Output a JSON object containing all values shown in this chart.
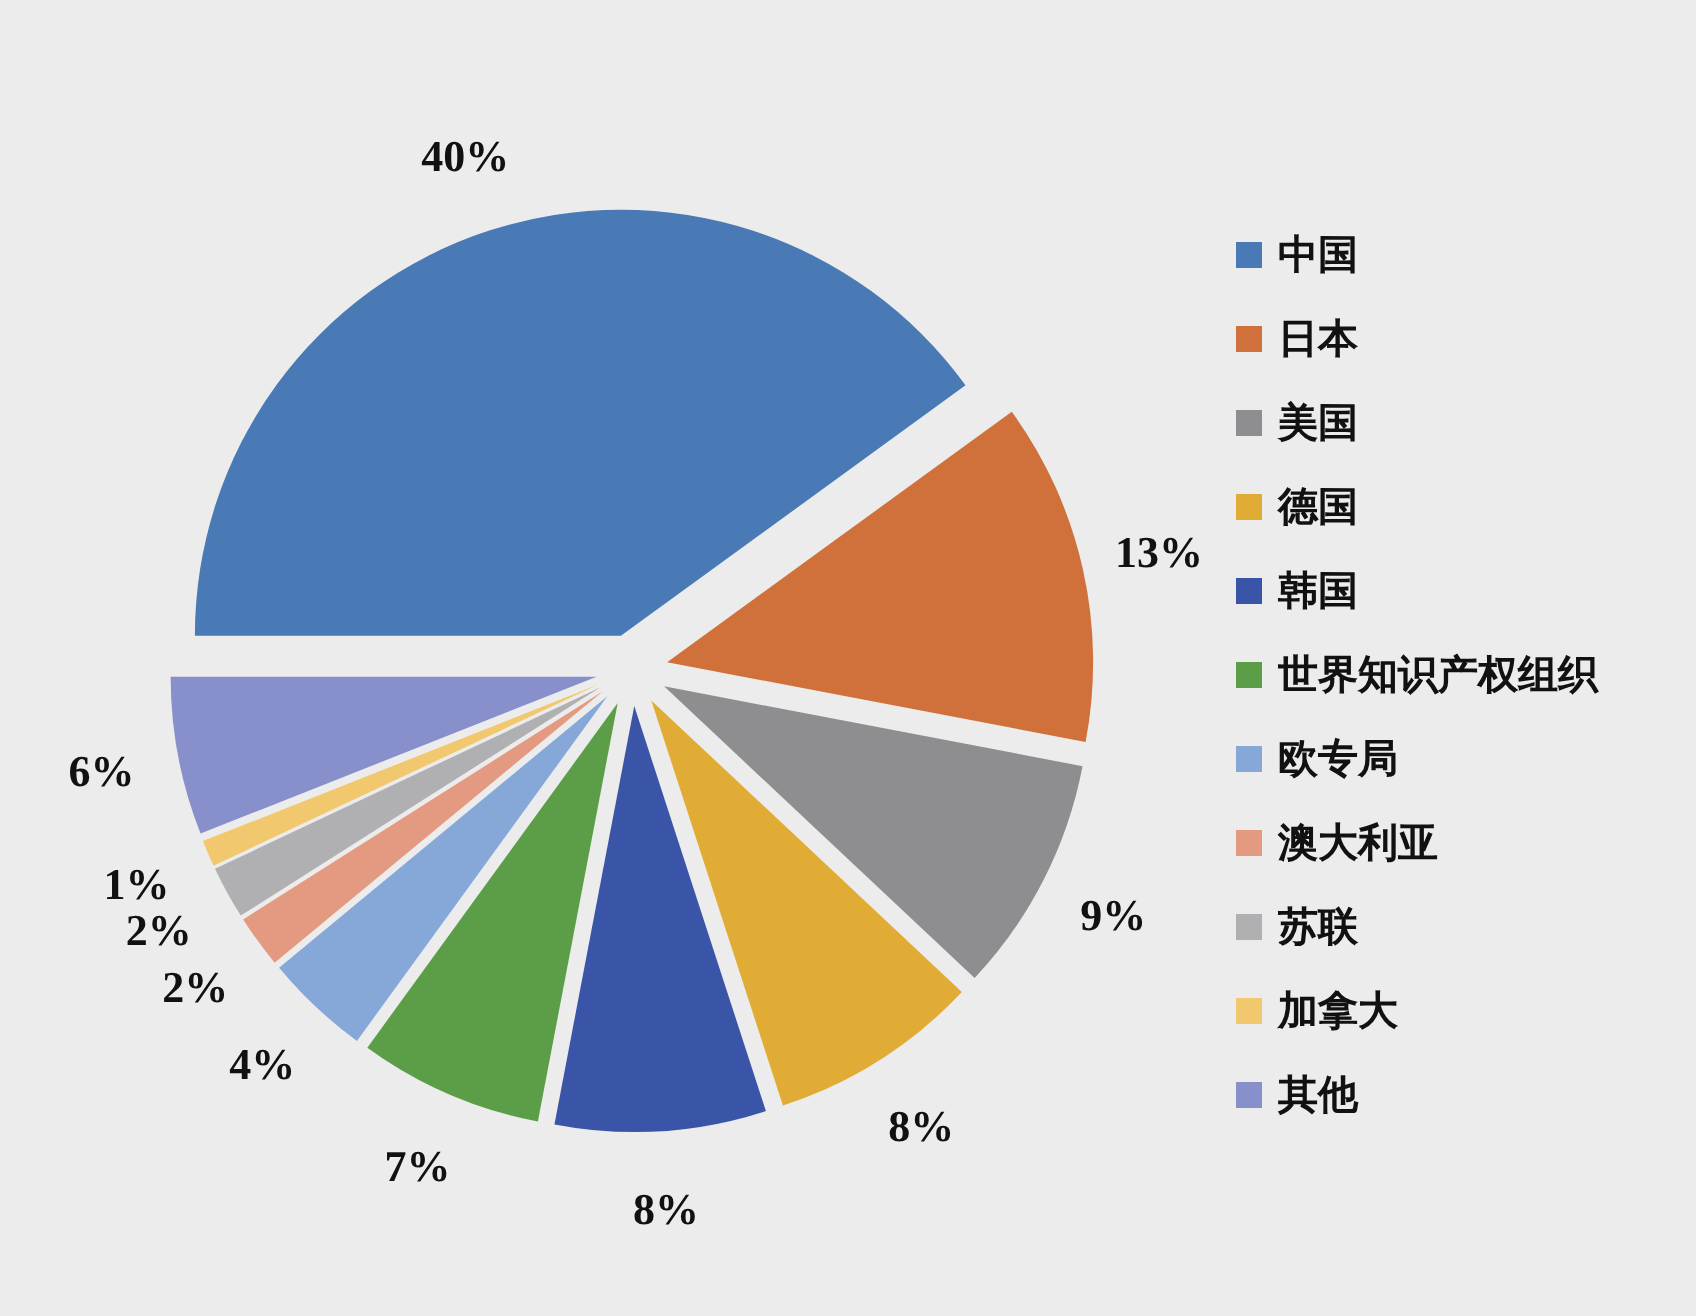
{
  "chart_data": {
    "type": "pie",
    "categories": [
      "中国",
      "日本",
      "美国",
      "德国",
      "韩国",
      "世界知识产权组织",
      "欧专局",
      "澳大利亚",
      "苏联",
      "加拿大",
      "其他"
    ],
    "values": [
      40,
      13,
      9,
      8,
      8,
      7,
      4,
      2,
      2,
      1,
      6
    ],
    "colors": [
      "#4a7ab5",
      "#d0703a",
      "#8e8e90",
      "#e0ac35",
      "#3a55a8",
      "#5c9e48",
      "#86a8d8",
      "#e49a80",
      "#b0b0b2",
      "#f2c86e",
      "#8890cc"
    ],
    "value_labels": [
      "40%",
      "13%",
      "9%",
      "8%",
      "8%",
      "7%",
      "4%",
      "2%",
      "2%",
      "1%",
      "6%"
    ],
    "legend": "right"
  }
}
